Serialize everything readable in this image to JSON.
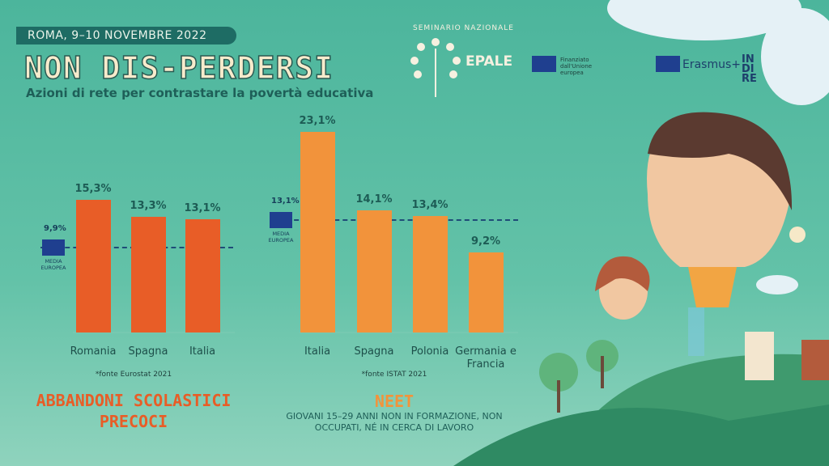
{
  "header": {
    "date": "ROMA, 9–10 NOVEMBRE 2022",
    "title": "NON DIS-PERDERSI",
    "subtitle": "Azioni di rete per contrastare la povertà educativa"
  },
  "logos": {
    "seminar": "SEMINARIO NAZIONALE",
    "epale": "EPALE",
    "eu_funding": "Finanziato dall'Unione europea",
    "erasmus": "Erasmus+",
    "indire": "INDIRE"
  },
  "chart_data": [
    {
      "type": "bar",
      "title": "ABBANDONI SCOLASTICI PRECOCI",
      "source": "*fonte Eurostat 2021",
      "categories": [
        "Romania",
        "Spagna",
        "Italia"
      ],
      "values": [
        15.3,
        13.3,
        13.1
      ],
      "value_labels": [
        "15,3%",
        "13,3%",
        "13,1%"
      ],
      "color": "#e85d27",
      "ylim": [
        0,
        25
      ],
      "reference": {
        "value": 9.9,
        "value_label": "9,9%",
        "label": "MEDIA EUROPEA"
      }
    },
    {
      "type": "bar",
      "title": "NEET",
      "subtitle": "GIOVANI 15–29 ANNI NON IN FORMAZIONE, NON OCCUPATI, NÉ IN CERCA DI LAVORO",
      "source": "*fonte ISTAT 2021",
      "categories": [
        "Italia",
        "Spagna",
        "Polonia",
        "Germania e Francia"
      ],
      "values": [
        23.1,
        14.1,
        13.4,
        9.2
      ],
      "value_labels": [
        "23,1%",
        "14,1%",
        "13,4%",
        "9,2%"
      ],
      "color": "#f2933b",
      "ylim": [
        0,
        25
      ],
      "reference": {
        "value": 13.1,
        "value_label": "13,1%",
        "label": "MEDIA EUROPEA"
      }
    }
  ]
}
